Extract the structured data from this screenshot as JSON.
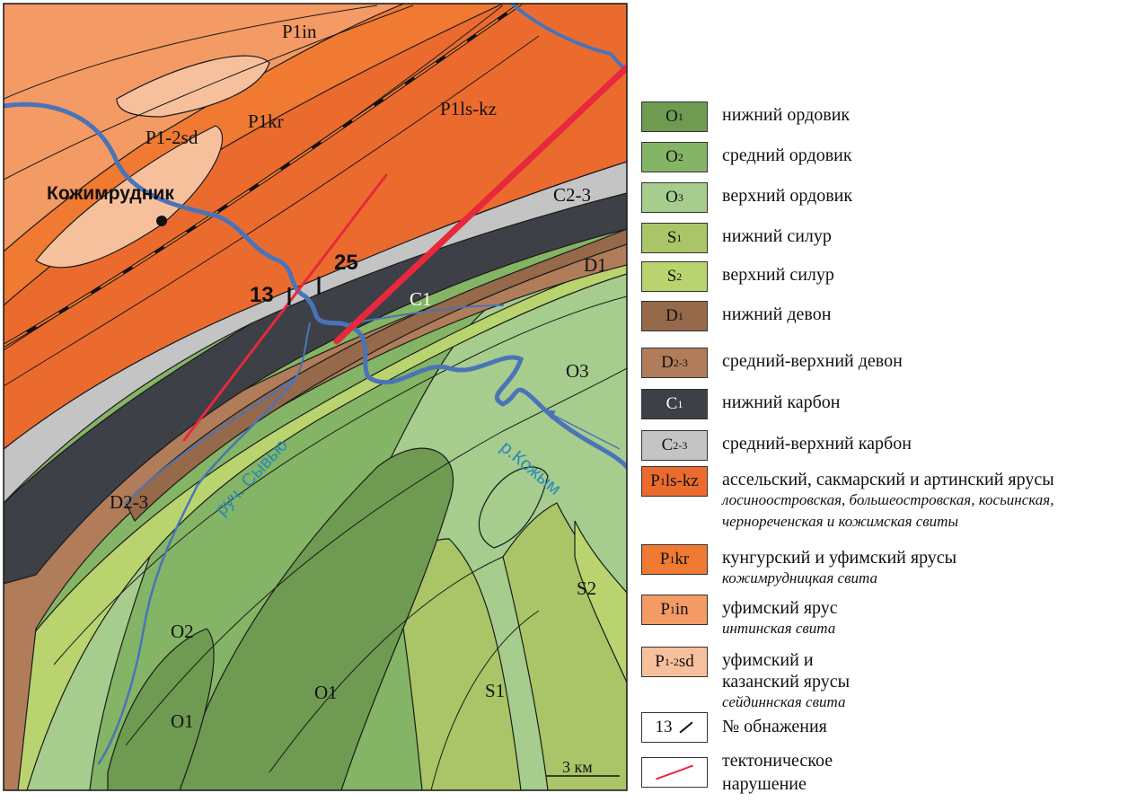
{
  "map": {
    "labels": {
      "p1in": "P1in",
      "p12sd": "P1-2sd",
      "p1kr": "P1kr",
      "p1lskz": "P1ls-kz",
      "c23": "C2-3",
      "c1": "C1",
      "d1": "D1",
      "d23": "D2-3",
      "o3": "O3",
      "o2": "O2",
      "o1a": "O1",
      "o1b": "O1",
      "s1": "S1",
      "s2": "S2"
    },
    "settlement": "Кожимрудник",
    "outcrop_13": "13",
    "outcrop_25": "25",
    "river_kozhym": "р.Кожым",
    "creek_syvyu": "руч. Сывью",
    "scale": "3 км"
  },
  "legend": [
    {
      "code": "O",
      "sub": "1",
      "label": "нижний ордовик",
      "color": "#6e9a52"
    },
    {
      "code": "O",
      "sub": "2",
      "label": "средний ордовик",
      "color": "#84b465"
    },
    {
      "code": "O",
      "sub": "3",
      "label": "верхний ордовик",
      "color": "#a6cc8e"
    },
    {
      "code": "S",
      "sub": "1",
      "label": "нижний силур",
      "color": "#a9c567"
    },
    {
      "code": "S",
      "sub": "2",
      "label": "верхний силур",
      "color": "#b9d46e"
    },
    {
      "code": "D",
      "sub": "1",
      "label": "нижний девон",
      "color": "#95694a"
    },
    {
      "code": "D",
      "sub": "2-3",
      "label": "средний-верхний девон",
      "color": "#b07c5a"
    },
    {
      "code": "C",
      "sub": "1",
      "label": "нижний карбон",
      "color": "#3d4046"
    },
    {
      "code": "C",
      "sub": "2-3",
      "label": "средний-верхний карбон",
      "color": "#c4c4c4"
    },
    {
      "code": "P",
      "sub": "1",
      "suffix": "ls-kz",
      "label": "ассельский, сакмарский и артинский ярусы",
      "note": [
        "лосиноостровская, большеостровская, косьинская,",
        "чернореченская и кожимская свиты"
      ],
      "color": "#eb6b2f"
    },
    {
      "code": "P",
      "sub": "1",
      "suffix": "kr",
      "label": "кунгурский и уфимский ярусы",
      "note": [
        "кожимрудницкая свита"
      ],
      "color": "#f07a32"
    },
    {
      "code": "P",
      "sub": "1",
      "suffix": "in",
      "label": "уфимский ярус",
      "note": [
        "интинская свита"
      ],
      "color": "#f49a64"
    },
    {
      "code": "P",
      "sub": "1-2",
      "suffix": "sd",
      "label": "уфимский и",
      "label2": "казанский ярусы",
      "note": [
        "сейдиннская свита"
      ],
      "color": "#f7c09c"
    }
  ],
  "outcrop_legend": {
    "symbol_text": "13",
    "label": "№ обнажения"
  },
  "fault_legend": {
    "label1": "тектоническое",
    "label2": "нарушение",
    "color": "#e8283c"
  },
  "colors": {
    "river": "#4a74b8",
    "fault": "#e8283c"
  }
}
